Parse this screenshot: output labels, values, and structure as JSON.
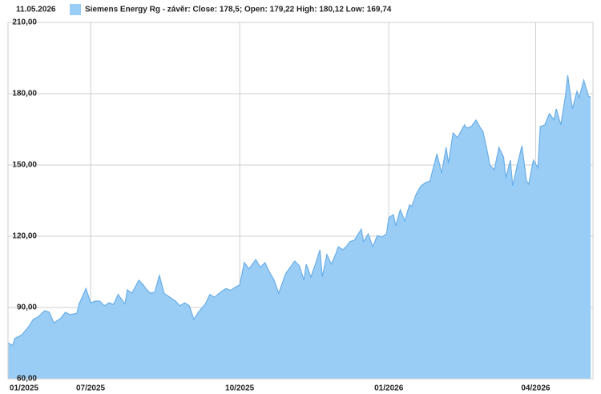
{
  "chart_data": {
    "type": "area",
    "date": "11.05.2026",
    "series": [
      {
        "name": "Siemens Energy Rg - závěr: Close: 178,5; Open: 179,22 High: 180,12 Low: 169,74",
        "color": "#99cdf5",
        "line_color": "#6aaee8",
        "x": [
          0,
          2,
          3,
          6,
          9,
          11,
          13,
          16,
          18,
          20,
          23,
          25,
          27,
          30,
          31,
          34,
          36,
          38,
          40,
          42,
          44,
          46,
          48,
          51,
          52,
          54,
          57,
          59,
          60,
          62,
          64,
          66,
          68,
          71,
          73,
          75,
          77,
          79,
          81,
          83,
          86,
          88,
          90,
          93,
          95,
          97,
          99,
          101,
          103,
          105,
          108,
          110,
          112,
          114,
          116,
          118,
          121,
          123,
          125,
          127,
          129,
          130,
          132,
          134,
          136,
          137,
          139,
          141,
          143,
          144,
          146,
          148,
          149,
          151,
          154,
          155,
          157,
          159,
          161,
          163,
          165,
          166,
          168,
          169,
          171,
          173,
          175,
          176,
          178,
          180,
          182,
          184,
          185,
          187,
          189,
          191,
          192,
          194,
          196,
          197,
          199,
          200,
          202,
          204,
          206,
          207,
          209,
          210,
          212,
          214,
          216,
          217,
          219,
          220,
          222,
          224,
          226,
          227,
          229,
          231,
          232,
          234,
          236,
          238,
          239,
          241,
          243,
          244,
          246,
          248,
          249,
          251,
          253,
          254
        ],
        "values": [
          75.2,
          74,
          77,
          78.5,
          82,
          85,
          86,
          88.7,
          88,
          83.5,
          85.5,
          88,
          87,
          87.5,
          91.5,
          98,
          92,
          92.7,
          92.7,
          90.7,
          92,
          91.3,
          95.5,
          91.5,
          97.5,
          96,
          101.5,
          99.5,
          98,
          96,
          96.5,
          103.5,
          96,
          94,
          92.7,
          90.7,
          92,
          90.7,
          85,
          88,
          91.5,
          95.5,
          94.3,
          96.7,
          98,
          97.2,
          98.5,
          99.5,
          108.9,
          106.2,
          110.2,
          106.9,
          108.9,
          104.8,
          101.5,
          96,
          104.2,
          106.9,
          109.6,
          107.5,
          101.5,
          108.2,
          102.8,
          108.2,
          114.3,
          102.8,
          112.3,
          108.2,
          112.9,
          115.6,
          114.3,
          116.3,
          117.7,
          118.3,
          123,
          117.7,
          121,
          115.6,
          120.3,
          119.7,
          121,
          127.8,
          129.1,
          124.4,
          131.1,
          126.4,
          133.2,
          132.5,
          137.9,
          141.2,
          142.6,
          143.3,
          147.3,
          154.7,
          146.6,
          157.4,
          150.7,
          163.5,
          161.5,
          163.5,
          166.9,
          165.5,
          166.2,
          168.9,
          165.5,
          164.2,
          155.4,
          150,
          148,
          157.4,
          153.4,
          144.6,
          152,
          141.2,
          150,
          158.1,
          143.3,
          141.9,
          152,
          148.7,
          166.2,
          166.9,
          171.6,
          169,
          173.6,
          166.9,
          179,
          187.8,
          173.6,
          181,
          178.3,
          185.7,
          179,
          178.5
        ]
      }
    ],
    "xlim": [
      0,
      255
    ],
    "xticks": [
      {
        "value": 0,
        "label": "01/2025"
      },
      {
        "value": 36,
        "label": "07/2025"
      },
      {
        "value": 101,
        "label": "10/2025"
      },
      {
        "value": 166,
        "label": "01/2026"
      },
      {
        "value": 230,
        "label": "04/2026"
      }
    ],
    "ylim": [
      60,
      210
    ],
    "yticks": [
      {
        "value": 60,
        "label": "60,00"
      },
      {
        "value": 90,
        "label": "90,00"
      },
      {
        "value": 120,
        "label": "120,00"
      },
      {
        "value": 150,
        "label": "150,00"
      },
      {
        "value": 180,
        "label": "180,00"
      },
      {
        "value": 210,
        "label": "210,00"
      }
    ],
    "grid": true
  }
}
